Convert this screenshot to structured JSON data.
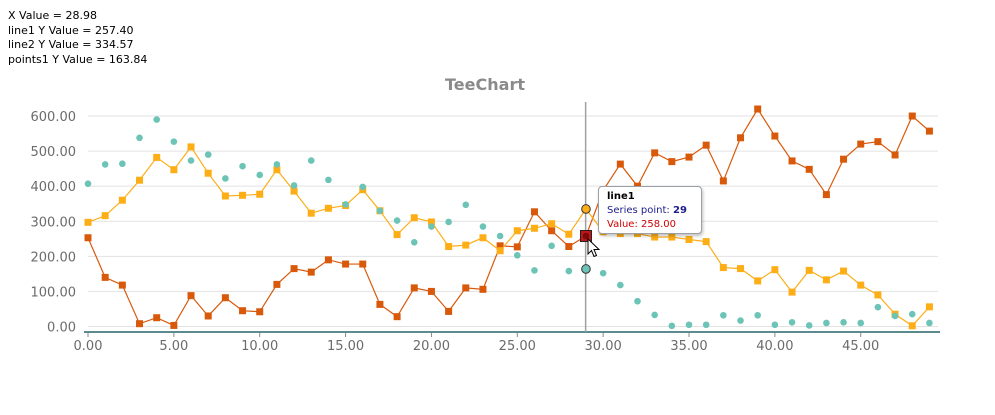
{
  "readout": {
    "x": "X Value = 28.98",
    "line1": "line1 Y Value = 257.40",
    "line2": "line2 Y Value = 334.57",
    "points1": "points1 Y Value = 163.84"
  },
  "tooltip": {
    "series": "line1",
    "point_label": "Series point: ",
    "point_index": "29",
    "value_label": "Value: 258.00"
  },
  "colors": {
    "line1": "#d9590b",
    "line2": "#fdae16",
    "points1": "#6cc4b6",
    "cursor_line": "#a0a0a0",
    "axis": "#5b8a8f",
    "grid": "#e2e2e2"
  },
  "chart_data": {
    "type": "line",
    "title": "TeeChart",
    "xlabel": "",
    "ylabel": "",
    "xlim": [
      0,
      49.5
    ],
    "ylim": [
      -10,
      640
    ],
    "x_ticks": [
      "0.00",
      "5.00",
      "10.00",
      "15.00",
      "20.00",
      "25.00",
      "30.00",
      "35.00",
      "40.00",
      "45.00"
    ],
    "y_ticks": [
      "0.00",
      "100.00",
      "200.00",
      "300.00",
      "400.00",
      "500.00",
      "600.00"
    ],
    "x_tick_values": [
      0,
      5,
      10,
      15,
      20,
      25,
      30,
      35,
      40,
      45
    ],
    "y_tick_values": [
      0,
      100,
      200,
      300,
      400,
      500,
      600
    ],
    "grid": true,
    "cursor_x": 28.98,
    "x": [
      0,
      1,
      2,
      3,
      4,
      5,
      6,
      7,
      8,
      9,
      10,
      11,
      12,
      13,
      14,
      15,
      16,
      17,
      18,
      19,
      20,
      21,
      22,
      23,
      24,
      25,
      26,
      27,
      28,
      29,
      30,
      31,
      32,
      33,
      34,
      35,
      36,
      37,
      38,
      39,
      40,
      41,
      42,
      43,
      44,
      45,
      46,
      47,
      48,
      49
    ],
    "series": [
      {
        "key": "line1",
        "style": "line",
        "values": [
          253,
          140,
          118,
          8,
          25,
          3,
          88,
          30,
          82,
          45,
          42,
          120,
          165,
          155,
          190,
          178,
          178,
          63,
          28,
          110,
          100,
          43,
          110,
          106,
          230,
          227,
          327,
          273,
          228,
          258,
          388,
          463,
          400,
          495,
          470,
          483,
          517,
          415,
          538,
          620,
          543,
          472,
          448,
          376,
          477,
          520,
          527,
          489,
          600,
          557
        ]
      },
      {
        "key": "line2",
        "style": "line",
        "values": [
          297,
          316,
          360,
          417,
          482,
          447,
          512,
          437,
          372,
          374,
          377,
          447,
          386,
          323,
          337,
          345,
          390,
          330,
          262,
          310,
          298,
          228,
          232,
          253,
          216,
          273,
          280,
          293,
          263,
          335,
          270,
          265,
          265,
          255,
          255,
          248,
          242,
          168,
          165,
          130,
          162,
          98,
          160,
          133,
          158,
          118,
          90,
          35,
          2,
          56
        ]
      },
      {
        "key": "points1",
        "style": "points",
        "values": [
          407,
          462,
          464,
          538,
          590,
          527,
          473,
          490,
          422,
          457,
          432,
          462,
          402,
          473,
          418,
          348,
          398,
          330,
          302,
          240,
          285,
          298,
          347,
          285,
          258,
          203,
          160,
          230,
          158,
          164,
          152,
          118,
          72,
          33,
          2,
          5,
          5,
          32,
          17,
          32,
          5,
          12,
          3,
          10,
          12,
          10,
          55,
          30,
          35,
          10
        ]
      }
    ]
  }
}
